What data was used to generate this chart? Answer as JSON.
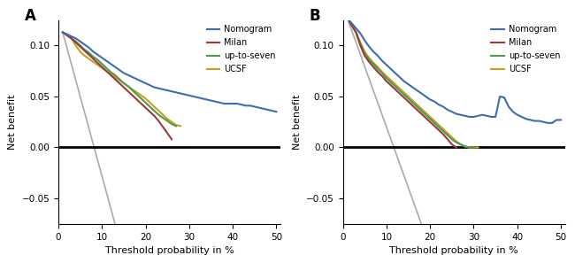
{
  "panel_A": {
    "label": "A",
    "nomogram_x": [
      1,
      2,
      3,
      4,
      5,
      6,
      7,
      8,
      9,
      10,
      11,
      12,
      13,
      14,
      15,
      16,
      17,
      18,
      19,
      20,
      21,
      22,
      23,
      24,
      25,
      26,
      27,
      28,
      29,
      30,
      31,
      32,
      33,
      34,
      35,
      36,
      37,
      38,
      39,
      40,
      41,
      42,
      43,
      44,
      45,
      46,
      47,
      48,
      49,
      50
    ],
    "nomogram_y": [
      0.113,
      0.111,
      0.109,
      0.107,
      0.104,
      0.101,
      0.098,
      0.094,
      0.091,
      0.088,
      0.085,
      0.082,
      0.079,
      0.076,
      0.073,
      0.071,
      0.069,
      0.067,
      0.065,
      0.063,
      0.061,
      0.059,
      0.058,
      0.057,
      0.056,
      0.055,
      0.054,
      0.053,
      0.052,
      0.051,
      0.05,
      0.049,
      0.048,
      0.047,
      0.046,
      0.045,
      0.044,
      0.043,
      0.043,
      0.043,
      0.043,
      0.042,
      0.041,
      0.041,
      0.04,
      0.039,
      0.038,
      0.037,
      0.036,
      0.035
    ],
    "milan_x": [
      1,
      2,
      3,
      4,
      5,
      6,
      7,
      8,
      9,
      10,
      11,
      12,
      13,
      14,
      15,
      16,
      17,
      18,
      19,
      20,
      21,
      22,
      23,
      24,
      25,
      26
    ],
    "milan_y": [
      0.113,
      0.11,
      0.107,
      0.103,
      0.099,
      0.095,
      0.091,
      0.087,
      0.083,
      0.079,
      0.075,
      0.071,
      0.067,
      0.063,
      0.059,
      0.055,
      0.051,
      0.047,
      0.043,
      0.039,
      0.035,
      0.031,
      0.026,
      0.02,
      0.014,
      0.008
    ],
    "up_to_seven_x": [
      1,
      2,
      3,
      4,
      5,
      6,
      7,
      8,
      9,
      10,
      11,
      12,
      13,
      14,
      15,
      16,
      17,
      18,
      19,
      20,
      21,
      22,
      23,
      24,
      25,
      26,
      27
    ],
    "up_to_seven_y": [
      0.113,
      0.11,
      0.107,
      0.104,
      0.1,
      0.096,
      0.093,
      0.089,
      0.086,
      0.082,
      0.078,
      0.074,
      0.071,
      0.067,
      0.063,
      0.06,
      0.056,
      0.052,
      0.048,
      0.044,
      0.04,
      0.036,
      0.032,
      0.029,
      0.026,
      0.023,
      0.021
    ],
    "ucsf_x": [
      1,
      2,
      3,
      4,
      5,
      6,
      7,
      8,
      9,
      10,
      11,
      12,
      13,
      14,
      15,
      16,
      17,
      18,
      19,
      20,
      21,
      22,
      23,
      24,
      25,
      26,
      27,
      28
    ],
    "ucsf_y": [
      0.113,
      0.11,
      0.107,
      0.1,
      0.094,
      0.09,
      0.087,
      0.084,
      0.081,
      0.078,
      0.075,
      0.072,
      0.069,
      0.066,
      0.063,
      0.06,
      0.057,
      0.054,
      0.051,
      0.048,
      0.044,
      0.04,
      0.036,
      0.032,
      0.028,
      0.025,
      0.022,
      0.021
    ],
    "gray_x": [
      1,
      13
    ],
    "gray_y": [
      0.113,
      -0.075
    ]
  },
  "panel_B": {
    "label": "B",
    "nomogram_x": [
      1,
      2,
      3,
      4,
      5,
      6,
      7,
      8,
      9,
      10,
      11,
      12,
      13,
      14,
      15,
      16,
      17,
      18,
      19,
      20,
      21,
      22,
      23,
      24,
      25,
      26,
      27,
      28,
      29,
      30,
      31,
      32,
      33,
      34,
      35,
      36,
      37,
      38,
      39,
      40,
      41,
      42,
      43,
      44,
      45,
      46,
      47,
      48,
      49,
      50
    ],
    "nomogram_y": [
      0.127,
      0.122,
      0.117,
      0.112,
      0.105,
      0.099,
      0.094,
      0.09,
      0.085,
      0.081,
      0.077,
      0.073,
      0.069,
      0.065,
      0.062,
      0.059,
      0.056,
      0.053,
      0.05,
      0.047,
      0.045,
      0.042,
      0.04,
      0.037,
      0.035,
      0.033,
      0.032,
      0.031,
      0.03,
      0.03,
      0.031,
      0.032,
      0.031,
      0.03,
      0.03,
      0.05,
      0.049,
      0.04,
      0.035,
      0.032,
      0.03,
      0.028,
      0.027,
      0.026,
      0.026,
      0.025,
      0.024,
      0.024,
      0.027,
      0.027
    ],
    "milan_x": [
      1,
      2,
      3,
      4,
      5,
      6,
      7,
      8,
      9,
      10,
      11,
      12,
      13,
      14,
      15,
      16,
      17,
      18,
      19,
      20,
      21,
      22,
      23,
      24,
      25,
      26
    ],
    "milan_y": [
      0.127,
      0.12,
      0.113,
      0.1,
      0.09,
      0.084,
      0.079,
      0.074,
      0.07,
      0.065,
      0.061,
      0.057,
      0.053,
      0.049,
      0.045,
      0.041,
      0.037,
      0.033,
      0.029,
      0.025,
      0.021,
      0.017,
      0.013,
      0.008,
      0.003,
      0.0
    ],
    "up_to_seven_x": [
      1,
      2,
      3,
      4,
      5,
      6,
      7,
      8,
      9,
      10,
      11,
      12,
      13,
      14,
      15,
      16,
      17,
      18,
      19,
      20,
      21,
      22,
      23,
      24,
      25,
      26,
      27,
      28,
      29,
      30
    ],
    "up_to_seven_y": [
      0.127,
      0.12,
      0.113,
      0.102,
      0.092,
      0.086,
      0.082,
      0.077,
      0.073,
      0.068,
      0.064,
      0.06,
      0.056,
      0.052,
      0.048,
      0.044,
      0.04,
      0.036,
      0.032,
      0.028,
      0.024,
      0.02,
      0.016,
      0.012,
      0.008,
      0.005,
      0.003,
      0.001,
      0.0,
      0.0
    ],
    "ucsf_x": [
      1,
      2,
      3,
      4,
      5,
      6,
      7,
      8,
      9,
      10,
      11,
      12,
      13,
      14,
      15,
      16,
      17,
      18,
      19,
      20,
      21,
      22,
      23,
      24,
      25,
      26,
      27,
      28,
      29,
      30,
      31
    ],
    "ucsf_y": [
      0.127,
      0.12,
      0.113,
      0.103,
      0.094,
      0.088,
      0.083,
      0.079,
      0.074,
      0.07,
      0.066,
      0.062,
      0.058,
      0.054,
      0.05,
      0.046,
      0.042,
      0.038,
      0.034,
      0.03,
      0.026,
      0.022,
      0.018,
      0.014,
      0.01,
      0.006,
      0.003,
      0.001,
      0.0,
      0.0,
      0.0
    ],
    "gray_x": [
      1,
      18
    ],
    "gray_y": [
      0.127,
      -0.075
    ]
  },
  "colors": {
    "nomogram": "#3B6DB3",
    "milan": "#9B3A3A",
    "up_to_seven": "#4E9A4E",
    "ucsf": "#C8A020",
    "gray": "#AAAAAA",
    "black": "#000000"
  },
  "xlim": [
    0,
    51
  ],
  "ylim": [
    -0.075,
    0.125
  ],
  "xticks": [
    0,
    10,
    20,
    30,
    40,
    50
  ],
  "yticks": [
    -0.05,
    0.0,
    0.05,
    0.1
  ],
  "xlabel": "Threshold probability in %",
  "ylabel": "Net benefit",
  "legend_labels": [
    "Nomogram",
    "Milan",
    "up-to-seven",
    "UCSF"
  ]
}
